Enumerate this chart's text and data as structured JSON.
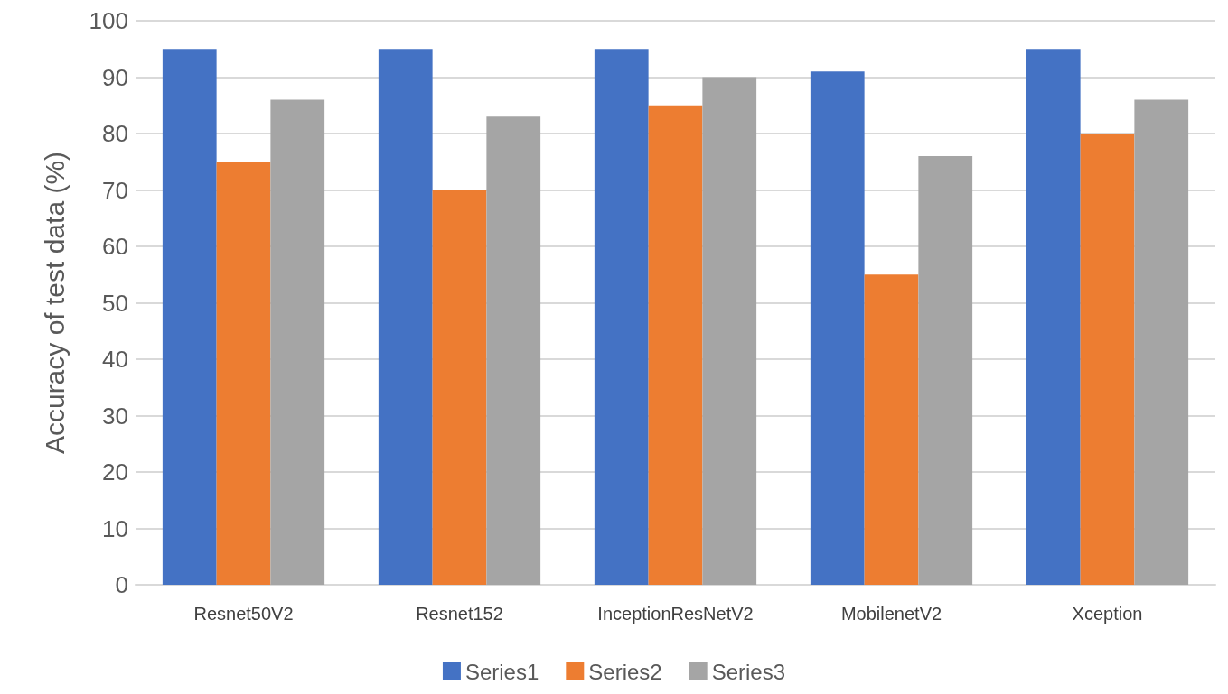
{
  "chart_data": {
    "type": "bar",
    "ylabel": "Accuracy of test data (%)",
    "categories": [
      "Resnet50V2",
      "Resnet152",
      "InceptionResNetV2",
      "MobilenetV2",
      "Xception"
    ],
    "series": [
      {
        "name": "Series1",
        "color": "#4472c4",
        "values": [
          95,
          95,
          95,
          91,
          95
        ]
      },
      {
        "name": "Series2",
        "color": "#ed7d31",
        "values": [
          75,
          70,
          85,
          55,
          80
        ]
      },
      {
        "name": "Series3",
        "color": "#a5a5a5",
        "values": [
          86,
          83,
          90,
          76,
          86
        ]
      }
    ],
    "ylim": [
      0,
      100
    ],
    "yticks": [
      0,
      10,
      20,
      30,
      40,
      50,
      60,
      70,
      80,
      90,
      100
    ],
    "grid": "y",
    "legend": "bottom"
  }
}
